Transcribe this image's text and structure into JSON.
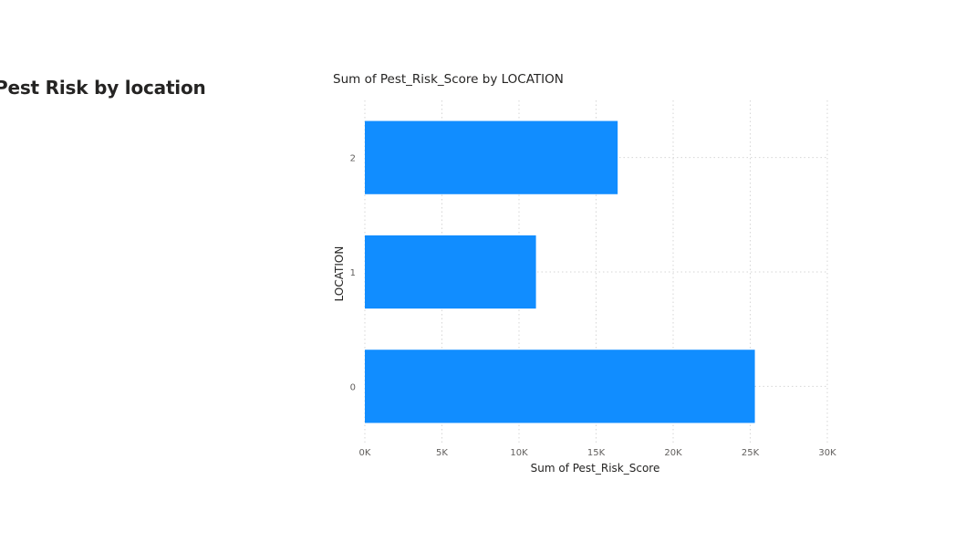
{
  "page": {
    "heading": "Pest Risk by location"
  },
  "chart_data": {
    "type": "bar",
    "orientation": "horizontal",
    "title": "Sum of Pest_Risk_Score by LOCATION",
    "xlabel": "Sum of Pest_Risk_Score",
    "ylabel": "LOCATION",
    "categories": [
      "2",
      "1",
      "0"
    ],
    "values": [
      16400,
      11100,
      25300
    ],
    "xlim": [
      0,
      30000
    ],
    "xticks": [
      0,
      5000,
      10000,
      15000,
      20000,
      25000,
      30000
    ],
    "xtick_labels": [
      "0K",
      "5K",
      "10K",
      "15K",
      "20K",
      "25K",
      "30K"
    ],
    "grid": true,
    "bar_color": "#118DFF",
    "grid_color": "#d6d6d6"
  }
}
